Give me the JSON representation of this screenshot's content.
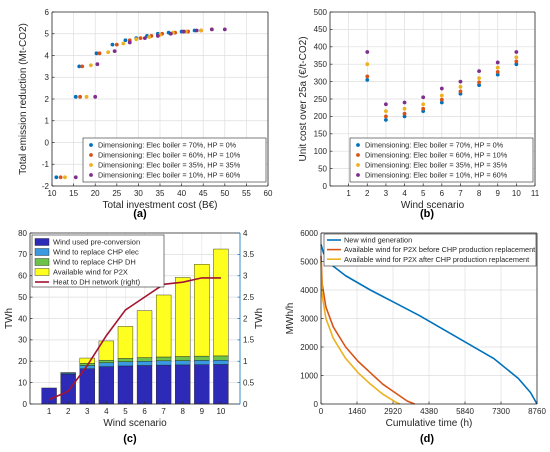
{
  "chart_data": [
    {
      "panel": "(a)",
      "type": "scatter",
      "xlabel": "Total investment cost (B€)",
      "ylabel": "Total emission reduction (Mt-CO2)",
      "xlim": [
        10,
        60
      ],
      "ylim": [
        -2,
        6
      ],
      "xticks": [
        10,
        15,
        20,
        25,
        30,
        35,
        40,
        45,
        50,
        55,
        60
      ],
      "yticks": [
        -2,
        -1,
        0,
        1,
        2,
        3,
        4,
        5,
        6
      ],
      "grid": true,
      "legend_position": "bottom-right",
      "series": [
        {
          "name": "Dimensioning: Elec boiler = 70%, HP = 0%",
          "color": "#0072bd",
          "x": [
            11,
            15.5,
            16.3,
            20.3,
            24,
            27,
            29.5,
            32,
            34.5,
            37,
            40,
            43
          ],
          "y": [
            -1.6,
            2.1,
            3.5,
            4.1,
            4.5,
            4.7,
            4.8,
            4.9,
            5.0,
            5.05,
            5.1,
            5.15
          ]
        },
        {
          "name": "Dimensioning: Elec boiler = 60%, HP = 10%",
          "color": "#d95319",
          "x": [
            12,
            16.5,
            17,
            21,
            25,
            28,
            30.5,
            33,
            35.5,
            38.5,
            41.5,
            44.5
          ],
          "y": [
            -1.6,
            2.1,
            3.5,
            4.1,
            4.5,
            4.7,
            4.8,
            4.9,
            5.0,
            5.05,
            5.1,
            5.15
          ]
        },
        {
          "name": "Dimensioning: Elec boiler = 35%, HP = 35%",
          "color": "#edb120",
          "x": [
            13,
            18,
            19,
            23,
            26.5,
            29.5,
            32.5,
            35,
            38,
            41,
            44.5,
            47
          ],
          "y": [
            -1.6,
            2.1,
            3.55,
            4.15,
            4.55,
            4.75,
            4.85,
            4.95,
            5.05,
            5.1,
            5.15,
            5.2
          ]
        },
        {
          "name": "Dimensioning: Elec boiler = 10%, HP = 60%",
          "color": "#7e2f8e",
          "x": [
            15.5,
            20,
            20.5,
            24.5,
            28,
            31.5,
            34.5,
            37.5,
            40.5,
            43.5,
            47,
            50
          ],
          "y": [
            -1.6,
            2.1,
            3.6,
            4.2,
            4.6,
            4.8,
            4.9,
            5.0,
            5.1,
            5.15,
            5.2,
            5.2
          ]
        }
      ]
    },
    {
      "panel": "(b)",
      "type": "scatter",
      "xlabel": "Wind scenario",
      "ylabel": "Unit cost over 25a (€/t-CO2)",
      "xlim": [
        0,
        11
      ],
      "ylim": [
        0,
        500
      ],
      "xticks": [
        1,
        2,
        3,
        4,
        5,
        6,
        7,
        8,
        9,
        10,
        11
      ],
      "yticks": [
        0,
        50,
        100,
        150,
        200,
        250,
        300,
        350,
        400,
        450,
        500
      ],
      "grid": true,
      "legend_position": "bottom-right",
      "series": [
        {
          "name": "Dimensioning: Elec boiler = 70%, HP = 0%",
          "color": "#0072bd",
          "x": [
            2,
            3,
            4,
            5,
            6,
            7,
            8,
            9,
            10
          ],
          "y": [
            305,
            190,
            200,
            215,
            240,
            265,
            290,
            320,
            350
          ]
        },
        {
          "name": "Dimensioning: Elec boiler = 60%, HP = 10%",
          "color": "#d95319",
          "x": [
            2,
            3,
            4,
            5,
            6,
            7,
            8,
            9,
            10
          ],
          "y": [
            315,
            200,
            208,
            222,
            248,
            272,
            298,
            328,
            358
          ]
        },
        {
          "name": "Dimensioning: Elec boiler = 35%, HP = 35%",
          "color": "#edb120",
          "x": [
            2,
            3,
            4,
            5,
            6,
            7,
            8,
            9,
            10
          ],
          "y": [
            350,
            215,
            222,
            235,
            260,
            285,
            310,
            340,
            370
          ]
        },
        {
          "name": "Dimensioning: Elec boiler = 10%, HP = 60%",
          "color": "#7e2f8e",
          "x": [
            2,
            3,
            4,
            5,
            6,
            7,
            8,
            9,
            10
          ],
          "y": [
            385,
            235,
            240,
            255,
            280,
            300,
            330,
            355,
            385
          ]
        }
      ]
    },
    {
      "panel": "(c)",
      "type": "bar",
      "stacked": true,
      "xlabel": "Wind scenario",
      "ylabel": "TWh",
      "ylabel_right": "TWh",
      "categories": [
        "1",
        "2",
        "3",
        "4",
        "5",
        "6",
        "7",
        "8",
        "9",
        "10"
      ],
      "ylim": [
        0,
        80
      ],
      "yticks": [
        0,
        10,
        20,
        30,
        40,
        50,
        60,
        70,
        80
      ],
      "ylim_right": [
        0,
        4
      ],
      "yticks_right": [
        "0",
        "0.5",
        "1",
        "1.5",
        "2",
        "2.5",
        "3",
        "3.5",
        "4"
      ],
      "grid": true,
      "legend_position": "top-left",
      "series": [
        {
          "name": "Wind used pre-conversion",
          "color": "#2e2ab8",
          "values": [
            7.5,
            14,
            16.5,
            17.5,
            17.8,
            18,
            18.2,
            18.3,
            18.4,
            18.5
          ]
        },
        {
          "name": "Wind to replace CHP elec",
          "color": "#3a9ae0",
          "values": [
            0,
            0.5,
            1.5,
            1.8,
            2,
            2,
            2,
            2,
            2,
            2
          ]
        },
        {
          "name": "Wind to replace CHP DH",
          "color": "#6dc24a",
          "values": [
            0,
            0.2,
            1.0,
            1.2,
            1.5,
            1.7,
            1.8,
            1.9,
            2.0,
            2.0
          ]
        },
        {
          "name": "Available wind for P2X",
          "color": "#ffff1f",
          "values": [
            0,
            0,
            2.5,
            9,
            15,
            22,
            29,
            37,
            43,
            50
          ]
        }
      ],
      "line": {
        "name": "Heat to DH network (right)",
        "color": "#a2142f",
        "axis": "right",
        "values": [
          0.1,
          0.3,
          0.9,
          1.6,
          2.2,
          2.5,
          2.8,
          2.85,
          2.95,
          2.95
        ]
      }
    },
    {
      "panel": "(d)",
      "type": "line",
      "xlabel": "Cumulative time (h)",
      "ylabel": "MWh/h",
      "xlim": [
        0,
        8760
      ],
      "ylim": [
        0,
        6000
      ],
      "xticks": [
        0,
        1460,
        2920,
        4380,
        5840,
        7300,
        8760
      ],
      "yticks": [
        0,
        1000,
        2000,
        3000,
        4000,
        5000,
        6000
      ],
      "grid": true,
      "legend_position": "top-right",
      "series": [
        {
          "name": "New wind generation",
          "color": "#0072bd",
          "x": [
            0,
            100,
            400,
            1000,
            2000,
            3000,
            4000,
            5000,
            6000,
            7000,
            8000,
            8500,
            8760
          ],
          "y": [
            5600,
            5300,
            4900,
            4500,
            4000,
            3550,
            3100,
            2600,
            2100,
            1600,
            900,
            400,
            0
          ]
        },
        {
          "name": "Available wind for P2X before CHP production replacement",
          "color": "#d95319",
          "x": [
            0,
            50,
            200,
            500,
            1000,
            1500,
            2000,
            2500,
            3000,
            3500,
            3800
          ],
          "y": [
            5200,
            4200,
            3400,
            2700,
            2000,
            1500,
            1100,
            700,
            400,
            100,
            0
          ]
        },
        {
          "name": "Available wind for P2X after CHP production replacement",
          "color": "#edb120",
          "x": [
            0,
            50,
            200,
            500,
            1000,
            1500,
            2000,
            2500,
            3000,
            3200
          ],
          "y": [
            5000,
            3800,
            3000,
            2300,
            1600,
            1100,
            700,
            350,
            80,
            0
          ]
        }
      ]
    }
  ]
}
